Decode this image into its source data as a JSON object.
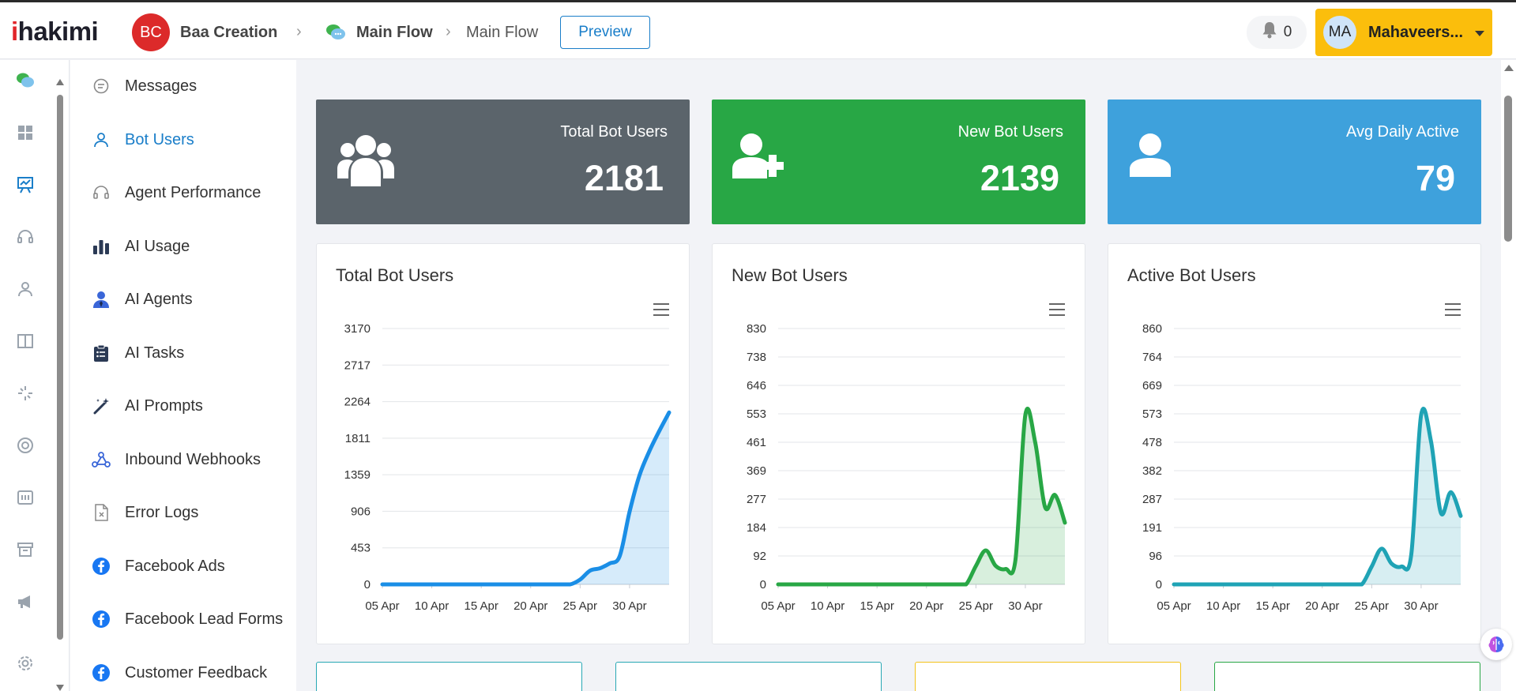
{
  "header": {
    "logo_prefix": "i",
    "logo_rest": "hakimi",
    "workspace_initials": "BC",
    "workspace_name": "Baa Creation",
    "flow_name": "Main Flow",
    "page_name": "Main Flow",
    "preview_label": "Preview",
    "notification_count": "0",
    "user_initials": "MA",
    "user_name": "Mahaveers..."
  },
  "rail_icons": [
    "chat-bubbles-icon",
    "dashboard-grid-icon",
    "analytics-board-icon",
    "headset-icon",
    "user-icon",
    "columns-icon",
    "loader-sparkle-icon",
    "lifebuoy-icon",
    "calculator-icon",
    "archive-box-icon",
    "megaphone-icon",
    "settings-gear-icon"
  ],
  "menu": [
    {
      "label": "Messages",
      "icon": "message-icon",
      "active": false
    },
    {
      "label": "Bot Users",
      "icon": "user-icon",
      "active": true
    },
    {
      "label": "Agent Performance",
      "icon": "headset-icon",
      "active": false
    },
    {
      "label": "AI Usage",
      "icon": "bar-chart-icon",
      "active": false
    },
    {
      "label": "AI Agents",
      "icon": "agent-icon",
      "active": false
    },
    {
      "label": "AI Tasks",
      "icon": "clipboard-icon",
      "active": false
    },
    {
      "label": "AI Prompts",
      "icon": "magic-wand-icon",
      "active": false
    },
    {
      "label": "Inbound Webhooks",
      "icon": "webhook-icon",
      "active": false
    },
    {
      "label": "Error Logs",
      "icon": "error-file-icon",
      "active": false
    },
    {
      "label": "Facebook Ads",
      "icon": "facebook-icon",
      "active": false
    },
    {
      "label": "Facebook Lead Forms",
      "icon": "facebook-icon",
      "active": false
    },
    {
      "label": "Customer Feedback",
      "icon": "facebook-icon",
      "active": false
    }
  ],
  "stats": [
    {
      "label": "Total Bot Users",
      "value": "2181",
      "color": "#5b646b",
      "icon": "users-group-icon"
    },
    {
      "label": "New Bot Users",
      "value": "2139",
      "color": "#28a745",
      "icon": "user-plus-icon"
    },
    {
      "label": "Avg Daily Active",
      "value": "79",
      "color": "#3ea1dc",
      "icon": "single-user-icon"
    }
  ],
  "chart_data": [
    {
      "type": "area",
      "title": "Total Bot Users",
      "color": "#1a8ee6",
      "ylim": [
        0,
        3170
      ],
      "yticks": [
        "3170",
        "2717",
        "2264",
        "1811",
        "1359",
        "906",
        "453",
        "0"
      ],
      "xticks": [
        "05 Apr",
        "10 Apr",
        "15 Apr",
        "20 Apr",
        "25 Apr",
        "30 Apr"
      ],
      "x_days": [
        5,
        6,
        7,
        8,
        9,
        10,
        11,
        12,
        13,
        14,
        15,
        16,
        17,
        18,
        19,
        20,
        21,
        22,
        23,
        24,
        25,
        26,
        27,
        28,
        29,
        30,
        31,
        32,
        33,
        34
      ],
      "values": [
        0,
        0,
        0,
        0,
        0,
        0,
        0,
        0,
        0,
        0,
        0,
        0,
        0,
        0,
        0,
        0,
        0,
        0,
        0,
        0,
        60,
        170,
        200,
        260,
        350,
        900,
        1350,
        1650,
        1900,
        2130
      ]
    },
    {
      "type": "area",
      "title": "New Bot Users",
      "color": "#28a745",
      "ylim": [
        0,
        830
      ],
      "yticks": [
        "830",
        "738",
        "646",
        "553",
        "461",
        "369",
        "277",
        "184",
        "92",
        "0"
      ],
      "xticks": [
        "05 Apr",
        "10 Apr",
        "15 Apr",
        "20 Apr",
        "25 Apr",
        "30 Apr"
      ],
      "x_days": [
        5,
        6,
        7,
        8,
        9,
        10,
        11,
        12,
        13,
        14,
        15,
        16,
        17,
        18,
        19,
        20,
        21,
        22,
        23,
        24,
        25,
        26,
        27,
        28,
        29,
        30,
        31,
        32,
        33,
        34
      ],
      "values": [
        0,
        0,
        0,
        0,
        0,
        0,
        0,
        0,
        0,
        0,
        0,
        0,
        0,
        0,
        0,
        0,
        0,
        0,
        0,
        0,
        60,
        110,
        60,
        50,
        80,
        550,
        460,
        250,
        290,
        200
      ]
    },
    {
      "type": "area",
      "title": "Active Bot Users",
      "color": "#1fa3b5",
      "ylim": [
        0,
        860
      ],
      "yticks": [
        "860",
        "764",
        "669",
        "573",
        "478",
        "382",
        "287",
        "191",
        "96",
        "0"
      ],
      "xticks": [
        "05 Apr",
        "10 Apr",
        "15 Apr",
        "20 Apr",
        "25 Apr",
        "30 Apr"
      ],
      "x_days": [
        5,
        6,
        7,
        8,
        9,
        10,
        11,
        12,
        13,
        14,
        15,
        16,
        17,
        18,
        19,
        20,
        21,
        22,
        23,
        24,
        25,
        26,
        27,
        28,
        29,
        30,
        31,
        32,
        33,
        34
      ],
      "values": [
        0,
        0,
        0,
        0,
        0,
        0,
        0,
        0,
        0,
        0,
        0,
        0,
        0,
        0,
        0,
        0,
        0,
        0,
        0,
        0,
        60,
        120,
        70,
        60,
        100,
        570,
        480,
        240,
        310,
        230
      ]
    }
  ],
  "bottom_card_colors": [
    "#28a8b4",
    "#28a8b4",
    "#f3c31a",
    "#28a745"
  ]
}
